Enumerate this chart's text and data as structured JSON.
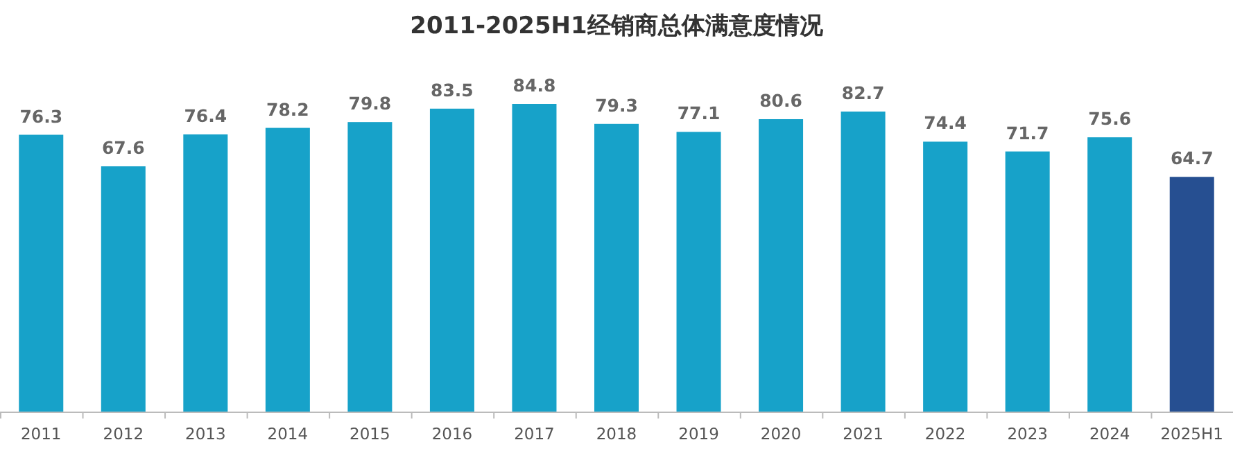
{
  "chart_data": {
    "type": "bar",
    "title": "2011-2025H1经销商总体满意度情况",
    "categories": [
      "2011",
      "2012",
      "2013",
      "2014",
      "2015",
      "2016",
      "2017",
      "2018",
      "2019",
      "2020",
      "2021",
      "2022",
      "2023",
      "2024",
      "2025H1"
    ],
    "values": [
      76.3,
      67.6,
      76.4,
      78.2,
      79.8,
      83.5,
      84.8,
      79.3,
      77.1,
      80.6,
      82.7,
      74.4,
      71.7,
      75.6,
      64.7
    ],
    "colors": [
      "#17a2c9",
      "#17a2c9",
      "#17a2c9",
      "#17a2c9",
      "#17a2c9",
      "#17a2c9",
      "#17a2c9",
      "#17a2c9",
      "#17a2c9",
      "#17a2c9",
      "#17a2c9",
      "#17a2c9",
      "#17a2c9",
      "#17a2c9",
      "#264f91"
    ],
    "data_labels": true
  }
}
